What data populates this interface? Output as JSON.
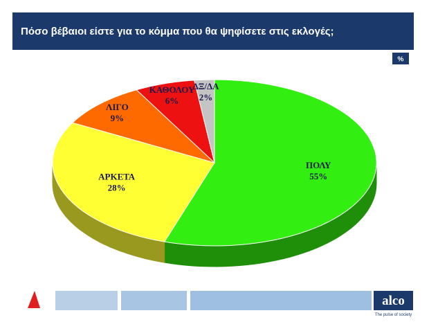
{
  "chart_data": {
    "type": "pie",
    "title": "Πόσο βέβαιοι είστε για το κόμμα που θα ψηφίσετε στις εκλογές;",
    "unit_label": "%",
    "categories": [
      "ΠΟΛΥ",
      "ΑΡΚΕΤΑ",
      "ΛΙΓΟ",
      "ΚΑΘΟΛΟΥ",
      "ΔΞ/ΔΑ"
    ],
    "values": [
      55,
      28,
      9,
      6,
      2
    ],
    "value_labels": [
      "55%",
      "28%",
      "9%",
      "6%",
      "2%"
    ],
    "colors": [
      "#33ee11",
      "#ffff33",
      "#ff6a00",
      "#ee1111",
      "#c4c4c4"
    ]
  },
  "footer": {
    "logo": "alco",
    "tagline": "The pulse of society"
  }
}
